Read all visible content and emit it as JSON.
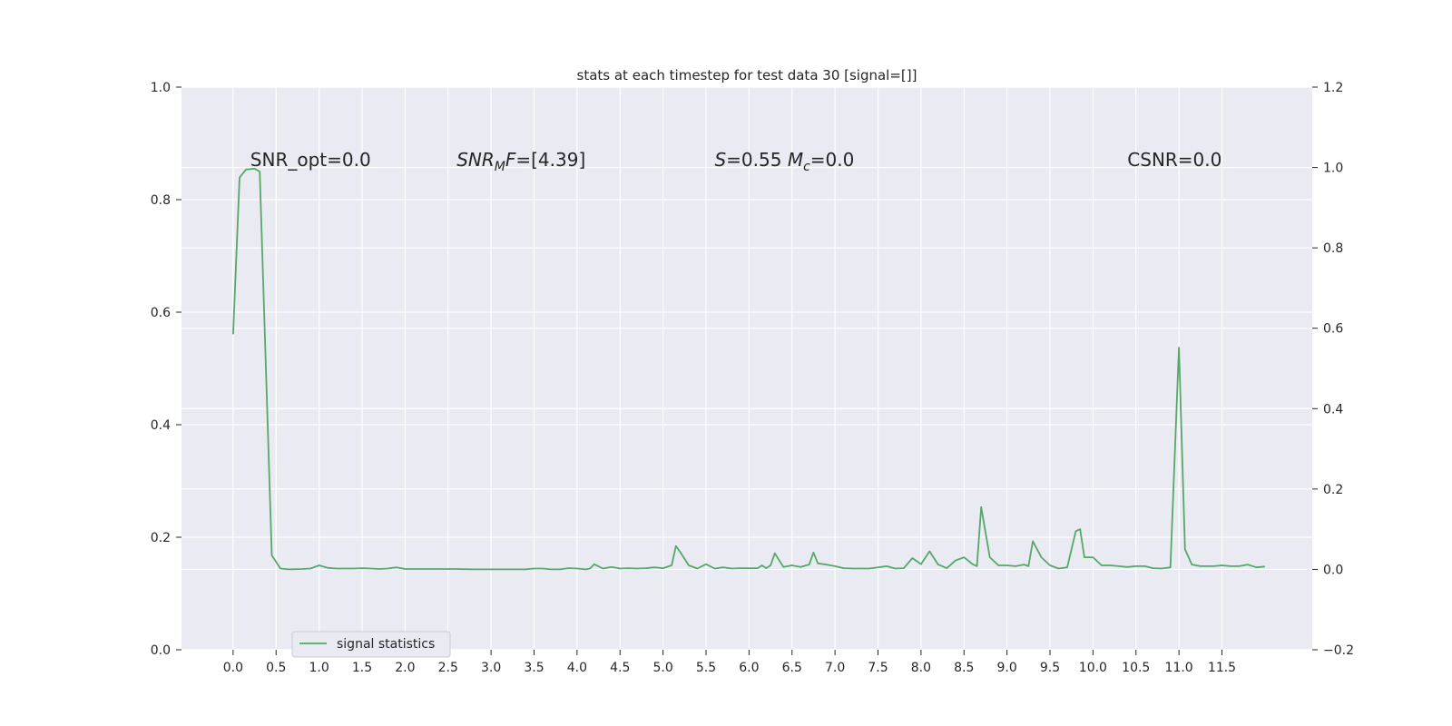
{
  "chart_data": {
    "type": "line",
    "title": "stats at each timestep for test data 30 [signal=[]]",
    "xlabel": "",
    "ylabel": "",
    "grid": true,
    "legend_placement": "lower-left",
    "xlim": [
      -0.6,
      12.55
    ],
    "ylim": [
      0.0,
      1.0
    ],
    "y2lim": [
      -0.2,
      1.2
    ],
    "x_ticks": [
      "0.0",
      "0.5",
      "1.0",
      "1.5",
      "2.0",
      "2.5",
      "3.0",
      "3.5",
      "4.0",
      "4.5",
      "5.0",
      "5.5",
      "6.0",
      "6.5",
      "7.0",
      "7.5",
      "8.0",
      "8.5",
      "9.0",
      "9.5",
      "10.0",
      "10.5",
      "11.0",
      "11.5"
    ],
    "y_ticks": [
      "0.0",
      "0.2",
      "0.4",
      "0.6",
      "0.8",
      "1.0"
    ],
    "y2_ticks": [
      "−0.2",
      "0.0",
      "0.2",
      "0.4",
      "0.6",
      "0.8",
      "1.0",
      "1.2"
    ],
    "annotations": [
      {
        "id": "snr-opt",
        "segments": [
          {
            "t": "SNR_opt=0.0"
          }
        ],
        "x": 0.2,
        "y": 0.86
      },
      {
        "id": "snr-mf",
        "segments": [
          {
            "t": "SNR",
            "italic": true
          },
          {
            "t": "M",
            "italic": true,
            "sub": true
          },
          {
            "t": "F",
            "italic": true
          },
          {
            "t": "=[4.39]"
          }
        ],
        "x": 2.6,
        "y": 0.86
      },
      {
        "id": "s-mc",
        "segments": [
          {
            "t": "S",
            "italic": true
          },
          {
            "t": "=0.55   "
          },
          {
            "t": "M",
            "italic": true
          },
          {
            "t": "c",
            "italic": true,
            "sub": true
          },
          {
            "t": "=0.0"
          }
        ],
        "x": 5.6,
        "y": 0.86
      },
      {
        "id": "csnr",
        "segments": [
          {
            "t": "CSNR=0.0"
          }
        ],
        "x": 10.4,
        "y": 0.86
      }
    ],
    "colors": {
      "line": "#55a868",
      "plot_bg": "#eaeaf2",
      "grid": "#ffffff",
      "text": "#262626"
    },
    "series": [
      {
        "name": "signal statistics",
        "axis": "right",
        "x": [
          0.0,
          0.075,
          0.15,
          0.25,
          0.31,
          0.45,
          0.55,
          0.65,
          0.8,
          0.9,
          1.0,
          1.1,
          1.2,
          1.3,
          1.4,
          1.5,
          1.6,
          1.7,
          1.8,
          1.9,
          2.0,
          2.2,
          2.4,
          2.5,
          2.6,
          2.8,
          3.0,
          3.2,
          3.4,
          3.5,
          3.6,
          3.7,
          3.8,
          3.9,
          4.0,
          4.1,
          4.15,
          4.2,
          4.3,
          4.4,
          4.5,
          4.6,
          4.7,
          4.8,
          4.9,
          5.0,
          5.1,
          5.15,
          5.2,
          5.3,
          5.4,
          5.5,
          5.6,
          5.7,
          5.8,
          5.9,
          6.0,
          6.1,
          6.15,
          6.2,
          6.25,
          6.3,
          6.4,
          6.5,
          6.6,
          6.7,
          6.75,
          6.8,
          6.9,
          7.0,
          7.1,
          7.2,
          7.4,
          7.6,
          7.7,
          7.8,
          7.9,
          8.0,
          8.1,
          8.2,
          8.3,
          8.4,
          8.5,
          8.6,
          8.65,
          8.7,
          8.8,
          8.9,
          9.0,
          9.1,
          9.2,
          9.25,
          9.3,
          9.4,
          9.5,
          9.6,
          9.7,
          9.8,
          9.85,
          9.9,
          10.0,
          10.1,
          10.2,
          10.3,
          10.4,
          10.5,
          10.6,
          10.7,
          10.8,
          10.9,
          11.0,
          11.07,
          11.15,
          11.25,
          11.4,
          11.5,
          11.6,
          11.7,
          11.8,
          11.9,
          12.0
        ],
        "y": [
          0.585,
          0.975,
          0.995,
          0.997,
          0.99,
          0.035,
          0.002,
          0.0,
          0.001,
          0.002,
          0.01,
          0.004,
          0.002,
          0.002,
          0.002,
          0.003,
          0.002,
          0.001,
          0.002,
          0.005,
          0.001,
          0.001,
          0.001,
          0.001,
          0.001,
          0.0,
          0.0,
          0.0,
          0.0,
          0.002,
          0.002,
          0.0,
          0.0,
          0.003,
          0.002,
          0.0,
          0.002,
          0.013,
          0.002,
          0.006,
          0.002,
          0.003,
          0.002,
          0.003,
          0.005,
          0.003,
          0.01,
          0.058,
          0.043,
          0.01,
          0.002,
          0.013,
          0.002,
          0.005,
          0.002,
          0.003,
          0.003,
          0.003,
          0.01,
          0.003,
          0.01,
          0.04,
          0.006,
          0.01,
          0.006,
          0.012,
          0.042,
          0.015,
          0.012,
          0.008,
          0.003,
          0.002,
          0.002,
          0.008,
          0.002,
          0.003,
          0.028,
          0.013,
          0.045,
          0.012,
          0.003,
          0.022,
          0.03,
          0.013,
          0.008,
          0.155,
          0.03,
          0.01,
          0.01,
          0.008,
          0.012,
          0.008,
          0.07,
          0.03,
          0.01,
          0.002,
          0.005,
          0.095,
          0.1,
          0.03,
          0.03,
          0.01,
          0.01,
          0.008,
          0.006,
          0.008,
          0.008,
          0.003,
          0.002,
          0.005,
          0.552,
          0.05,
          0.012,
          0.008,
          0.008,
          0.01,
          0.008,
          0.008,
          0.012,
          0.005,
          0.007
        ]
      }
    ]
  }
}
